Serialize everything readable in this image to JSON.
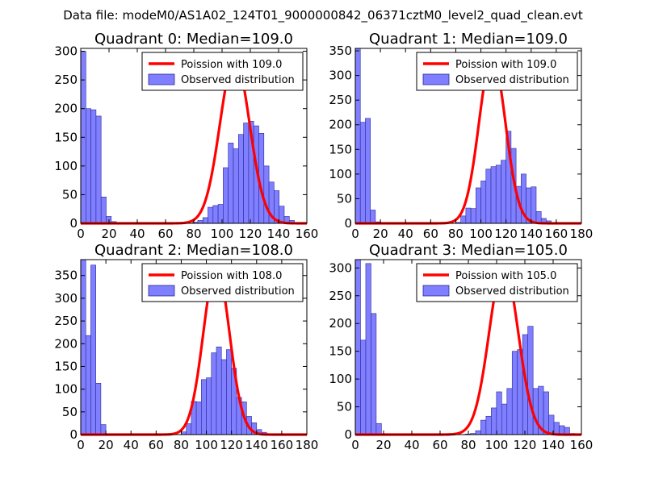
{
  "figure_title": "Data file: modeM0/AS1A02_124T01_9000000842_06371cztM0_level2_quad_clean.evt",
  "colors": {
    "bar_fill": "#7f7fff",
    "bar_edge": "#2a2a9a",
    "curve": "#ff0000"
  },
  "chart_data": [
    {
      "type": "bar",
      "title": "Quadrant 0: Median=109.0",
      "xlim": [
        0,
        160
      ],
      "ylim": [
        0,
        305
      ],
      "xticks": [
        0,
        20,
        40,
        60,
        80,
        100,
        120,
        140,
        160
      ],
      "yticks": [
        0,
        50,
        100,
        150,
        200,
        250,
        300
      ],
      "bin_width": 3.6,
      "bins": [
        [
          0,
          300
        ],
        [
          3.6,
          200
        ],
        [
          7.2,
          198
        ],
        [
          10.8,
          187
        ],
        [
          14.4,
          46
        ],
        [
          18,
          12
        ],
        [
          21.6,
          3
        ],
        [
          79.2,
          2
        ],
        [
          82.8,
          5
        ],
        [
          86.4,
          10
        ],
        [
          90,
          28
        ],
        [
          93.6,
          31
        ],
        [
          97.2,
          33
        ],
        [
          100.8,
          97
        ],
        [
          104.4,
          140
        ],
        [
          108,
          130
        ],
        [
          111.6,
          155
        ],
        [
          115.2,
          175
        ],
        [
          118.8,
          178
        ],
        [
          122.4,
          170
        ],
        [
          126,
          157
        ],
        [
          129.6,
          100
        ],
        [
          133.2,
          72
        ],
        [
          136.8,
          57
        ],
        [
          140.4,
          30
        ],
        [
          144,
          12
        ],
        [
          147.6,
          5
        ],
        [
          151.2,
          1
        ]
      ],
      "legend": [
        "Poission with 109.0",
        "Observed distribution"
      ],
      "curve": {
        "label": "Poission with 109.0",
        "mean": 109.0,
        "peak": 288,
        "sigma": 10.44
      }
    },
    {
      "type": "bar",
      "title": "Quadrant 1: Median=109.0",
      "xlim": [
        0,
        180
      ],
      "ylim": [
        0,
        355
      ],
      "xticks": [
        0,
        20,
        40,
        60,
        80,
        100,
        120,
        140,
        160,
        180
      ],
      "yticks": [
        0,
        50,
        100,
        150,
        200,
        250,
        300,
        350
      ],
      "bin_width": 4.0,
      "bins": [
        [
          0,
          355
        ],
        [
          4,
          205
        ],
        [
          8,
          213
        ],
        [
          12,
          27
        ],
        [
          16,
          3
        ],
        [
          80,
          2
        ],
        [
          84,
          15
        ],
        [
          88,
          31
        ],
        [
          92,
          30
        ],
        [
          96,
          72
        ],
        [
          100,
          86
        ],
        [
          104,
          110
        ],
        [
          108,
          115
        ],
        [
          112,
          118
        ],
        [
          116,
          128
        ],
        [
          120,
          187
        ],
        [
          124,
          152
        ],
        [
          128,
          75
        ],
        [
          132,
          100
        ],
        [
          136,
          72
        ],
        [
          140,
          74
        ],
        [
          144,
          24
        ],
        [
          148,
          10
        ],
        [
          152,
          5
        ]
      ],
      "legend": [
        "Poission with 109.0",
        "Observed distribution"
      ],
      "curve": {
        "label": "Poission with 109.0",
        "mean": 109.0,
        "peak": 340,
        "sigma": 10.44
      }
    },
    {
      "type": "bar",
      "title": "Quadrant 2: Median=108.0",
      "xlim": [
        0,
        180
      ],
      "ylim": [
        0,
        385
      ],
      "xticks": [
        0,
        20,
        40,
        60,
        80,
        100,
        120,
        140,
        160,
        180
      ],
      "yticks": [
        0,
        50,
        100,
        150,
        200,
        250,
        300,
        350
      ],
      "bin_width": 4.0,
      "bins": [
        [
          0,
          385
        ],
        [
          4,
          218
        ],
        [
          8,
          373
        ],
        [
          12,
          113
        ],
        [
          16,
          22
        ],
        [
          20,
          2
        ],
        [
          64,
          2
        ],
        [
          80,
          6
        ],
        [
          84,
          24
        ],
        [
          88,
          73
        ],
        [
          92,
          72
        ],
        [
          96,
          121
        ],
        [
          100,
          125
        ],
        [
          104,
          180
        ],
        [
          108,
          193
        ],
        [
          112,
          165
        ],
        [
          116,
          187
        ],
        [
          120,
          146
        ],
        [
          124,
          82
        ],
        [
          128,
          72
        ],
        [
          132,
          40
        ],
        [
          136,
          26
        ],
        [
          140,
          11
        ],
        [
          144,
          5
        ],
        [
          148,
          2
        ],
        [
          152,
          1
        ]
      ],
      "legend": [
        "Poission with 108.0",
        "Observed distribution"
      ],
      "curve": {
        "label": "Poission with 108.0",
        "mean": 108.0,
        "peak": 370,
        "sigma": 10.39
      }
    },
    {
      "type": "bar",
      "title": "Quadrant 3: Median=105.0",
      "xlim": [
        0,
        160
      ],
      "ylim": [
        0,
        315
      ],
      "xticks": [
        0,
        20,
        40,
        60,
        80,
        100,
        120,
        140,
        160
      ],
      "yticks": [
        0,
        50,
        100,
        150,
        200,
        250,
        300
      ],
      "bin_width": 3.7,
      "bins": [
        [
          0,
          315
        ],
        [
          3.7,
          170
        ],
        [
          7.4,
          308
        ],
        [
          11.1,
          218
        ],
        [
          14.8,
          20
        ],
        [
          18.5,
          1
        ],
        [
          77.7,
          1
        ],
        [
          81.4,
          2
        ],
        [
          85.1,
          7
        ],
        [
          88.8,
          26
        ],
        [
          92.5,
          33
        ],
        [
          96.2,
          48
        ],
        [
          99.9,
          77
        ],
        [
          103.6,
          55
        ],
        [
          107.3,
          83
        ],
        [
          111,
          150
        ],
        [
          114.7,
          153
        ],
        [
          118.4,
          180
        ],
        [
          122.1,
          195
        ],
        [
          125.8,
          83
        ],
        [
          129.5,
          87
        ],
        [
          133.2,
          77
        ],
        [
          136.9,
          35
        ],
        [
          140.6,
          22
        ],
        [
          144.3,
          16
        ],
        [
          148,
          13
        ],
        [
          151.7,
          2
        ]
      ],
      "legend": [
        "Poission with 105.0",
        "Observed distribution"
      ],
      "curve": {
        "label": "Poission with 105.0",
        "mean": 105.0,
        "peak": 305,
        "sigma": 10.25
      }
    }
  ]
}
